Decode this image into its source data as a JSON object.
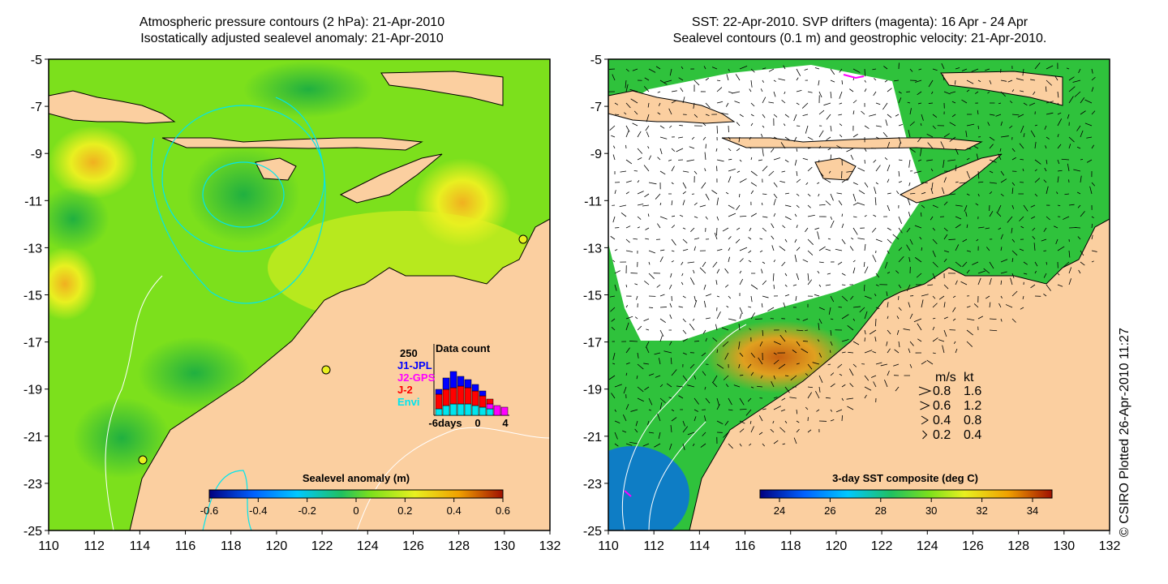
{
  "left_panel": {
    "title_line1": "Atmospheric pressure contours (2 hPa): 21-Apr-2010",
    "title_line2": "Isostatically adjusted sealevel anomaly: 21-Apr-2010",
    "colorbar_label": "Sealevel anomaly (m)",
    "colorbar_ticks": [
      "-0.6",
      "-0.4",
      "-0.2",
      "0",
      "0.2",
      "0.4",
      "0.6"
    ],
    "inset": {
      "title": "Data count",
      "max_label": "250",
      "legend": [
        {
          "label": "J1-JPL",
          "color": "#0000ff"
        },
        {
          "label": "J2-GPS",
          "color": "#ff00ff"
        },
        {
          "label": "J-2",
          "color": "#ff0000"
        },
        {
          "label": "Envi",
          "color": "#00e5ee"
        }
      ],
      "x_ticks": [
        "-6days",
        "0",
        "4"
      ]
    }
  },
  "right_panel": {
    "title_line1": "SST: 22-Apr-2010. SVP drifters (magenta): 16 Apr - 24 Apr",
    "title_line2": "Sealevel contours (0.1 m) and geostrophic velocity: 21-Apr-2010.",
    "colorbar_label": "3-day SST composite (deg C)",
    "colorbar_ticks": [
      "24",
      "26",
      "28",
      "30",
      "32",
      "34"
    ],
    "velocity_legend": {
      "header_ms": "m/s",
      "header_kt": "kt",
      "rows": [
        {
          "ms": "0.8",
          "kt": "1.6"
        },
        {
          "ms": "0.6",
          "kt": "1.2"
        },
        {
          "ms": "0.4",
          "kt": "0.8"
        },
        {
          "ms": "0.2",
          "kt": "0.4"
        }
      ]
    }
  },
  "axes": {
    "x_ticks": [
      "110",
      "112",
      "114",
      "116",
      "118",
      "120",
      "122",
      "124",
      "126",
      "128",
      "130",
      "132"
    ],
    "y_ticks": [
      "-5",
      "-7",
      "-9",
      "-11",
      "-13",
      "-15",
      "-17",
      "-19",
      "-21",
      "-23",
      "-25"
    ]
  },
  "credit": "© CSIRO Plotted 26-Apr-2010 11:27",
  "colors": {
    "land": "#fbcfa0",
    "sea_anomaly_base": "#7ce01c",
    "sst_base": "#2fc23c",
    "cloud": "#ffffff"
  }
}
